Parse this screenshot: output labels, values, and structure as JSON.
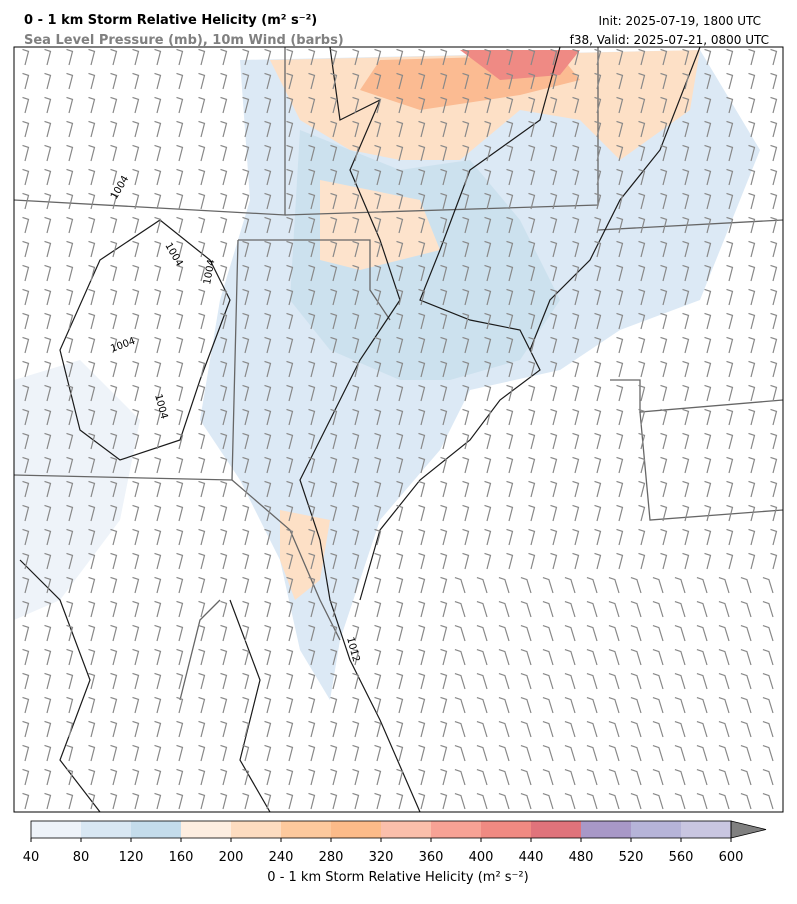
{
  "header": {
    "title": "0 - 1 km Storm Relative Helicity (m² s⁻²)",
    "subtitle": "Sea Level Pressure (mb), 10m Wind (barbs)",
    "init": "Init: 2025-07-19, 1800 UTC",
    "valid": "f38, Valid: 2025-07-21, 0800 UTC"
  },
  "map": {
    "contour_labels": [
      1004,
      1004,
      1004,
      1004,
      1004,
      1012
    ]
  },
  "colorbar": {
    "label": "0 - 1 km Storm Relative Helicity (m² s⁻²)",
    "ticks": [
      40,
      80,
      120,
      160,
      200,
      240,
      280,
      320,
      360,
      400,
      440,
      480,
      520,
      560,
      600
    ],
    "colors": [
      "#eef3f9",
      "#d8e7f3",
      "#c4dceb",
      "#fdeee1",
      "#fddcc0",
      "#fdc99d",
      "#fcbb89",
      "#fbbfab",
      "#f7a295",
      "#f08a82",
      "#e0737b",
      "#a898c7",
      "#b6b4d8",
      "#c9c6e1"
    ],
    "extend_color": "#808080"
  }
}
